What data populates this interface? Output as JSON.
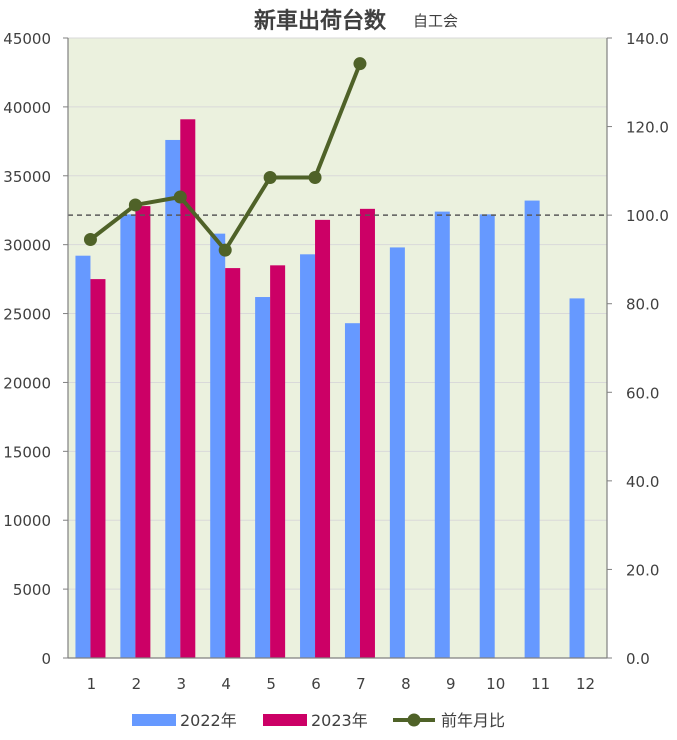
{
  "chart_data": {
    "type": "bar",
    "title": "新車出荷台数",
    "subtitle": "自工会",
    "categories": [
      "1",
      "2",
      "3",
      "4",
      "5",
      "6",
      "7",
      "8",
      "9",
      "10",
      "11",
      "12"
    ],
    "series": [
      {
        "name": "2022年",
        "type": "bar",
        "axis": "left",
        "color": "#6699ff",
        "values": [
          29200,
          32200,
          37600,
          30800,
          26200,
          29300,
          24300,
          29800,
          32400,
          32200,
          33200,
          26100
        ]
      },
      {
        "name": "2023年",
        "type": "bar",
        "axis": "left",
        "color": "#cc0066",
        "values": [
          27500,
          32800,
          39100,
          28300,
          28500,
          31800,
          32600,
          null,
          null,
          null,
          null,
          null
        ]
      },
      {
        "name": "前年月比",
        "type": "line",
        "axis": "right",
        "color": "#4f6228",
        "values": [
          94.5,
          102.3,
          104.1,
          92.1,
          108.5,
          108.5,
          134.2,
          null,
          null,
          null,
          null,
          null
        ]
      }
    ],
    "yleft": {
      "min": 0,
      "max": 45000,
      "ticks": [
        "0",
        "5000",
        "10000",
        "15000",
        "20000",
        "25000",
        "30000",
        "35000",
        "40000",
        "45000"
      ]
    },
    "yright": {
      "min": 0,
      "max": 140,
      "ticks": [
        "0.0",
        "20.0",
        "40.0",
        "60.0",
        "80.0",
        "100.0",
        "120.0",
        "140.0"
      ]
    },
    "reference_line": {
      "axis": "right",
      "value": 100,
      "style": "dashed"
    },
    "plot_background": "#ebf1de",
    "grid": true,
    "legend": "bottom"
  }
}
